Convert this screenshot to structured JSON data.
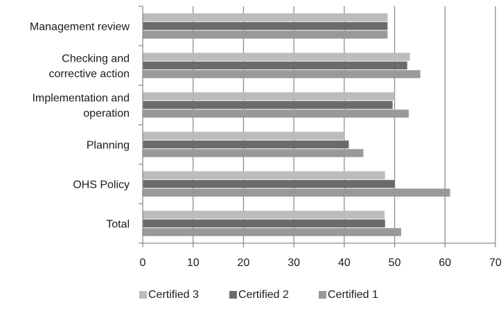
{
  "chart_data": {
    "type": "bar",
    "orientation": "horizontal",
    "title": "",
    "xlabel": "",
    "ylabel": "",
    "categories": [
      [
        "Total"
      ],
      [
        "OHS Policy"
      ],
      [
        "Planning"
      ],
      [
        "Implementation and",
        "operation"
      ],
      [
        "Checking and",
        "corrective action"
      ],
      [
        "Management review"
      ]
    ],
    "series": [
      {
        "name": "Certified 3",
        "color": "#bcbcbc",
        "values": [
          48,
          48.1,
          40,
          50,
          53,
          48.6
        ]
      },
      {
        "name": "Certified 2",
        "color": "#6b6b6b",
        "values": [
          48.1,
          50,
          40.9,
          49.6,
          52.5,
          48.6
        ]
      },
      {
        "name": "Certified 1",
        "color": "#999999",
        "values": [
          51.3,
          61,
          43.8,
          52.8,
          55.1,
          48.6
        ]
      }
    ],
    "xlim": [
      0,
      70
    ],
    "xticks": [
      "0",
      "10",
      "20",
      "30",
      "40",
      "50",
      "60",
      "70"
    ],
    "grid": true,
    "legend_position": "bottom"
  }
}
